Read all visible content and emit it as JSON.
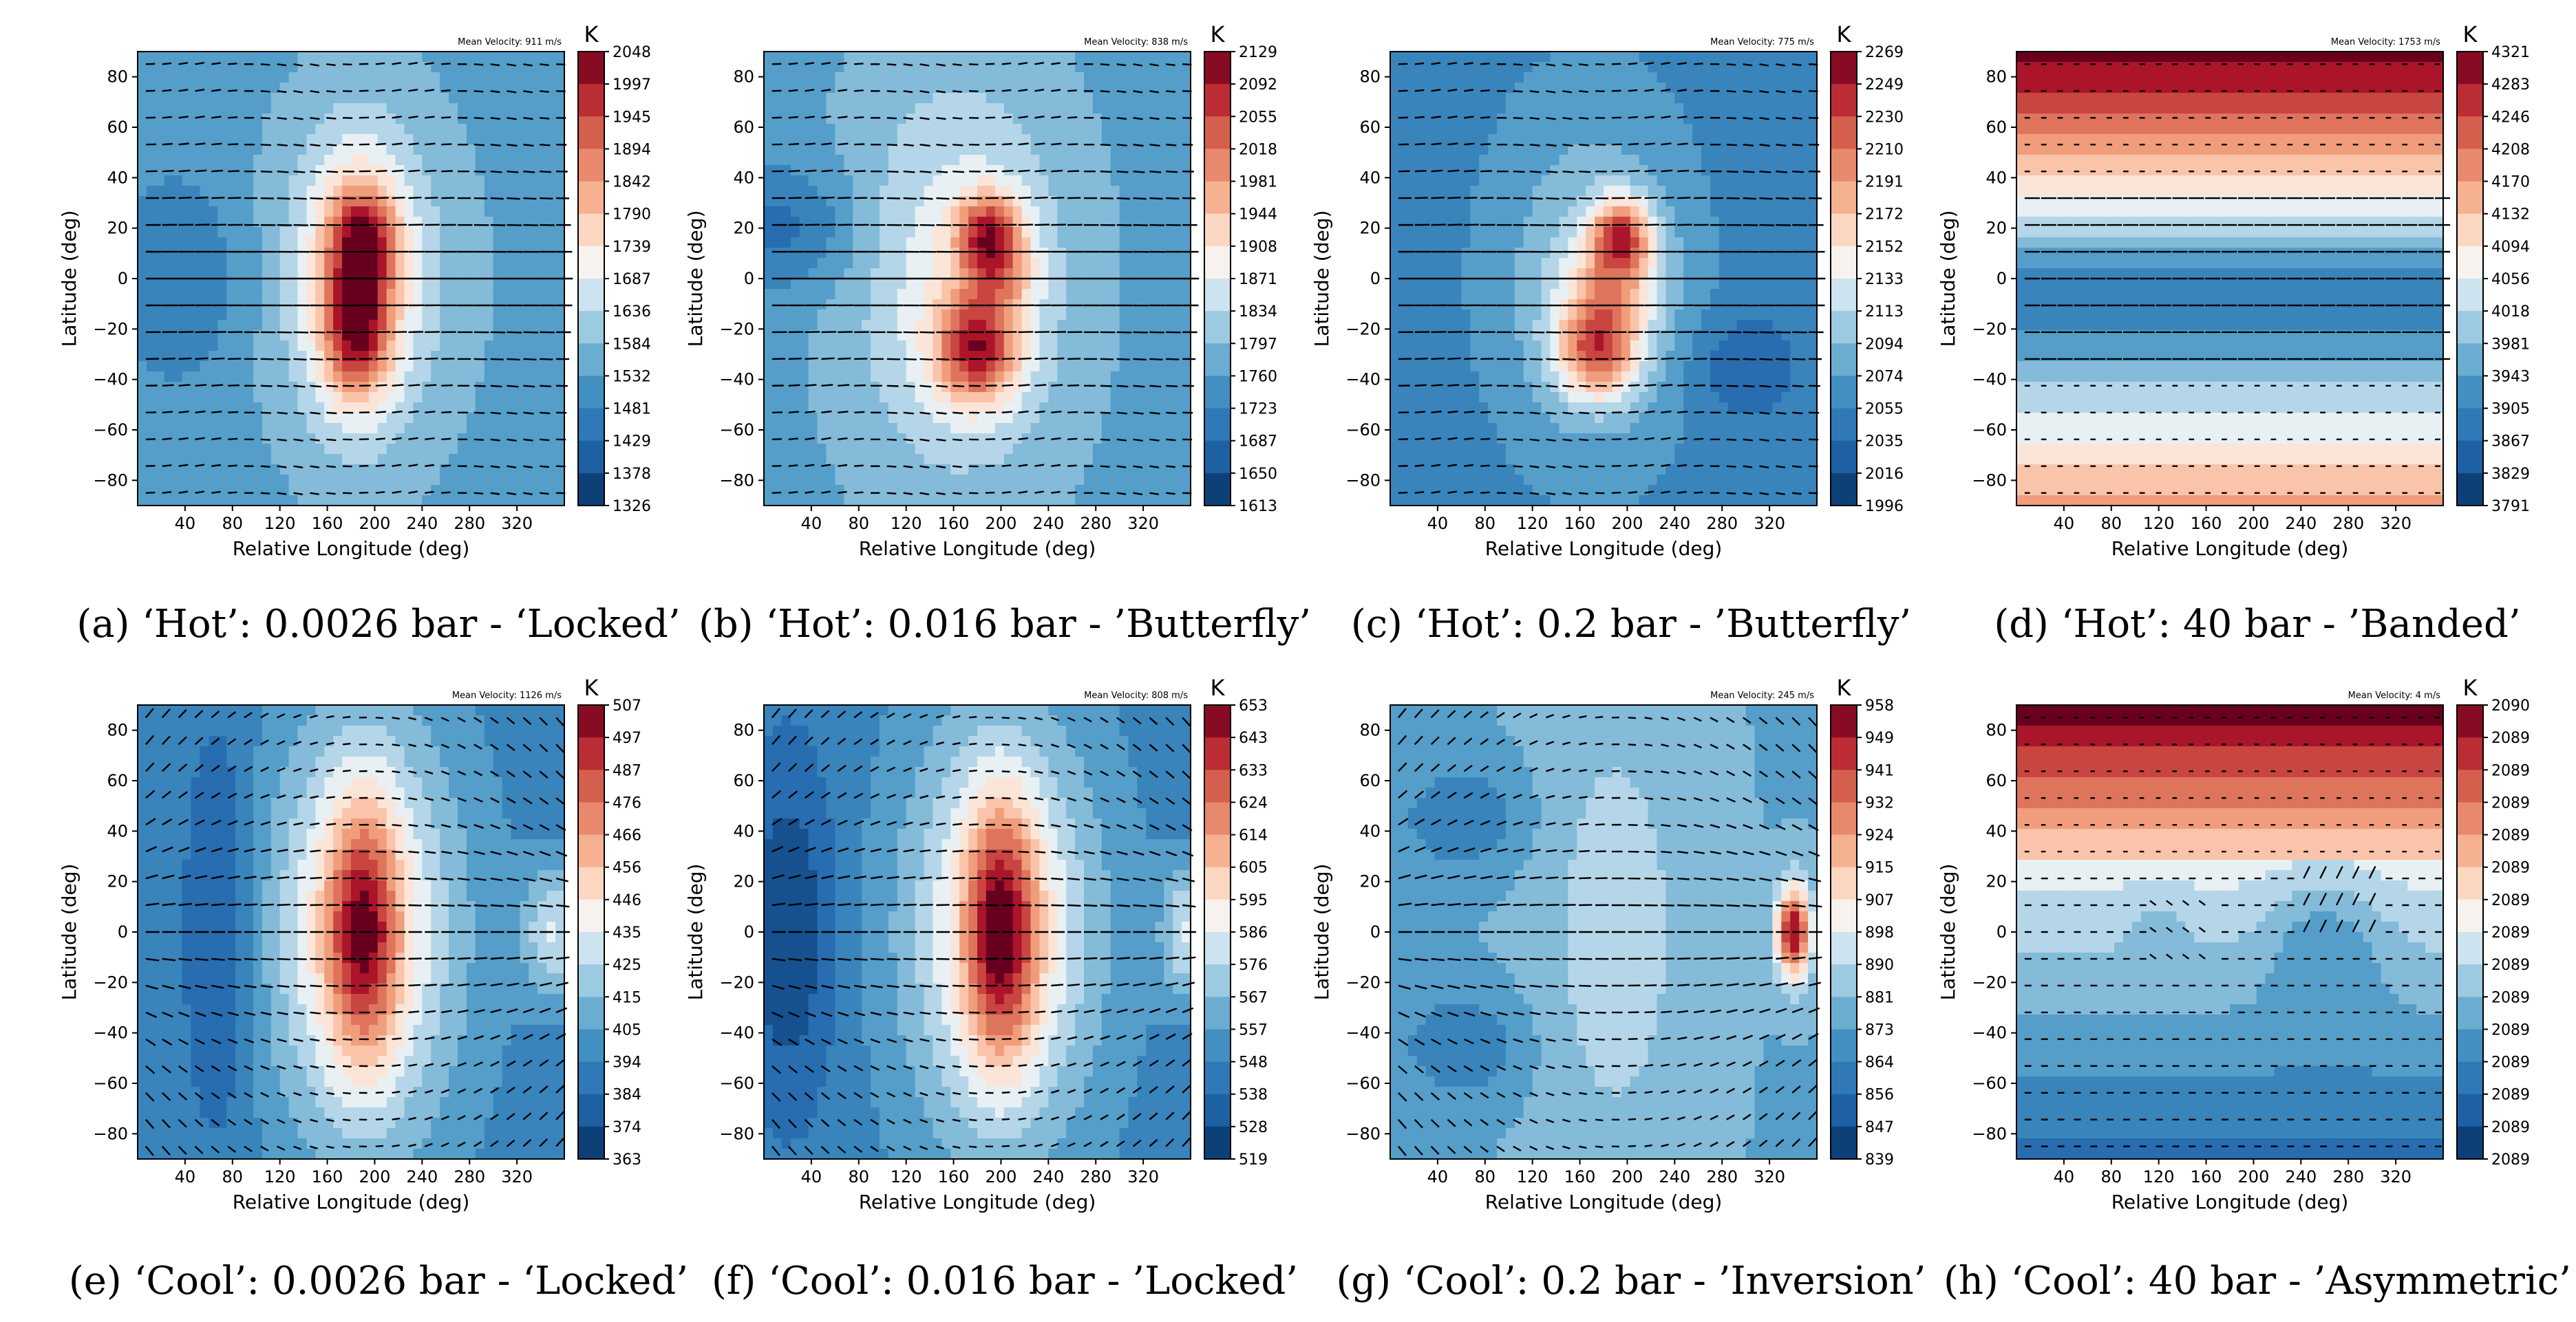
{
  "figure": {
    "units_label": "K",
    "velocity_label_prefix": "Mean Velocity: "
  },
  "chart_data": [
    {
      "type": "heatmap",
      "caption": "(a) ‘Hot’: 0.0026 bar - ‘Locked’",
      "xlabel": "Relative Longitude (deg)",
      "ylabel": "Latitude (deg)",
      "xticks": [
        "40",
        "80",
        "120",
        "160",
        "200",
        "240",
        "280",
        "320"
      ],
      "yticks": [
        "80",
        "60",
        "40",
        "20",
        "0",
        "−20",
        "−40",
        "−60",
        "−80"
      ],
      "xlim": [
        0,
        360
      ],
      "ylim": [
        -90,
        90
      ],
      "colorbar_label": "K",
      "colorbar_ticks": [
        "2048",
        "1997",
        "1945",
        "1894",
        "1842",
        "1790",
        "1739",
        "1687",
        "1636",
        "1584",
        "1532",
        "1481",
        "1429",
        "1378",
        "1326"
      ],
      "mean_velocity": "911 m/s",
      "pattern": "locked-hot"
    },
    {
      "type": "heatmap",
      "caption": "(b) ‘Hot’: 0.016 bar - ’Butterfly’",
      "xlabel": "Relative Longitude (deg)",
      "ylabel": "Latitude (deg)",
      "xticks": [
        "40",
        "80",
        "120",
        "160",
        "200",
        "240",
        "280",
        "320"
      ],
      "yticks": [
        "80",
        "60",
        "40",
        "20",
        "0",
        "−20",
        "−40",
        "−60",
        "−80"
      ],
      "xlim": [
        0,
        360
      ],
      "ylim": [
        -90,
        90
      ],
      "colorbar_label": "K",
      "colorbar_ticks": [
        "2129",
        "2092",
        "2055",
        "2018",
        "1981",
        "1944",
        "1908",
        "1871",
        "1834",
        "1797",
        "1760",
        "1723",
        "1687",
        "1650",
        "1613"
      ],
      "mean_velocity": "838 m/s",
      "pattern": "butterfly"
    },
    {
      "type": "heatmap",
      "caption": "(c) ‘Hot’: 0.2 bar - ’Butterfly’",
      "xlabel": "Relative Longitude (deg)",
      "ylabel": "Latitude (deg)",
      "xticks": [
        "40",
        "80",
        "120",
        "160",
        "200",
        "240",
        "280",
        "320"
      ],
      "yticks": [
        "80",
        "60",
        "40",
        "20",
        "0",
        "−20",
        "−40",
        "−60",
        "−80"
      ],
      "xlim": [
        0,
        360
      ],
      "ylim": [
        -90,
        90
      ],
      "colorbar_label": "K",
      "colorbar_ticks": [
        "2269",
        "2249",
        "2230",
        "2210",
        "2191",
        "2172",
        "2152",
        "2133",
        "2113",
        "2094",
        "2074",
        "2055",
        "2035",
        "2016",
        "1996"
      ],
      "mean_velocity": "775 m/s",
      "pattern": "butterfly2"
    },
    {
      "type": "heatmap",
      "caption": "(d) ‘Hot’: 40 bar - ’Banded’",
      "xlabel": "Relative Longitude (deg)",
      "ylabel": "Latitude (deg)",
      "xticks": [
        "40",
        "80",
        "120",
        "160",
        "200",
        "240",
        "280",
        "320"
      ],
      "yticks": [
        "80",
        "60",
        "40",
        "20",
        "0",
        "−20",
        "−40",
        "−60",
        "−80"
      ],
      "xlim": [
        0,
        360
      ],
      "ylim": [
        -90,
        90
      ],
      "colorbar_label": "K",
      "colorbar_ticks": [
        "4321",
        "4283",
        "4246",
        "4208",
        "4170",
        "4132",
        "4094",
        "4056",
        "4018",
        "3981",
        "3943",
        "3905",
        "3867",
        "3829",
        "3791"
      ],
      "mean_velocity": "1753 m/s",
      "pattern": "banded"
    },
    {
      "type": "heatmap",
      "caption": "(e) ‘Cool’: 0.0026 bar - ‘Locked’",
      "xlabel": "Relative Longitude (deg)",
      "ylabel": "Latitude (deg)",
      "xticks": [
        "40",
        "80",
        "120",
        "160",
        "200",
        "240",
        "280",
        "320"
      ],
      "yticks": [
        "80",
        "60",
        "40",
        "20",
        "0",
        "−20",
        "−40",
        "−60",
        "−80"
      ],
      "xlim": [
        0,
        360
      ],
      "ylim": [
        -90,
        90
      ],
      "colorbar_label": "K",
      "colorbar_ticks": [
        "507",
        "497",
        "487",
        "476",
        "466",
        "456",
        "446",
        "435",
        "425",
        "415",
        "405",
        "394",
        "384",
        "374",
        "363"
      ],
      "mean_velocity": "1126 m/s",
      "pattern": "locked-cool"
    },
    {
      "type": "heatmap",
      "caption": "(f) ‘Cool’: 0.016 bar - ’Locked’",
      "xlabel": "Relative Longitude (deg)",
      "ylabel": "Latitude (deg)",
      "xticks": [
        "40",
        "80",
        "120",
        "160",
        "200",
        "240",
        "280",
        "320"
      ],
      "yticks": [
        "80",
        "60",
        "40",
        "20",
        "0",
        "−20",
        "−40",
        "−60",
        "−80"
      ],
      "xlim": [
        0,
        360
      ],
      "ylim": [
        -90,
        90
      ],
      "colorbar_label": "K",
      "colorbar_ticks": [
        "653",
        "643",
        "633",
        "624",
        "614",
        "605",
        "595",
        "586",
        "576",
        "567",
        "557",
        "548",
        "538",
        "528",
        "519"
      ],
      "mean_velocity": "808 m/s",
      "pattern": "locked-cool2"
    },
    {
      "type": "heatmap",
      "caption": "(g) ‘Cool’: 0.2 bar - ’Inversion’",
      "xlabel": "Relative Longitude (deg)",
      "ylabel": "Latitude (deg)",
      "xticks": [
        "40",
        "80",
        "120",
        "160",
        "200",
        "240",
        "280",
        "320"
      ],
      "yticks": [
        "80",
        "60",
        "40",
        "20",
        "0",
        "−20",
        "−40",
        "−60",
        "−80"
      ],
      "xlim": [
        0,
        360
      ],
      "ylim": [
        -90,
        90
      ],
      "colorbar_label": "K",
      "colorbar_ticks": [
        "958",
        "949",
        "941",
        "932",
        "924",
        "915",
        "907",
        "898",
        "890",
        "881",
        "873",
        "864",
        "856",
        "847",
        "839"
      ],
      "mean_velocity": "245 m/s",
      "pattern": "inversion"
    },
    {
      "type": "heatmap",
      "caption": "(h) ‘Cool’: 40 bar - ’Asymmetric’",
      "xlabel": "Relative Longitude (deg)",
      "ylabel": "Latitude (deg)",
      "xticks": [
        "40",
        "80",
        "120",
        "160",
        "200",
        "240",
        "280",
        "320"
      ],
      "yticks": [
        "80",
        "60",
        "40",
        "20",
        "0",
        "−20",
        "−40",
        "−60",
        "−80"
      ],
      "xlim": [
        0,
        360
      ],
      "ylim": [
        -90,
        90
      ],
      "colorbar_label": "K",
      "colorbar_ticks": [
        "2090",
        "2089",
        "2089",
        "2089",
        "2089",
        "2089",
        "2089",
        "2089",
        "2089",
        "2089",
        "2089",
        "2089",
        "2089",
        "2089",
        "2089"
      ],
      "mean_velocity": "4 m/s",
      "pattern": "asymmetric"
    }
  ]
}
